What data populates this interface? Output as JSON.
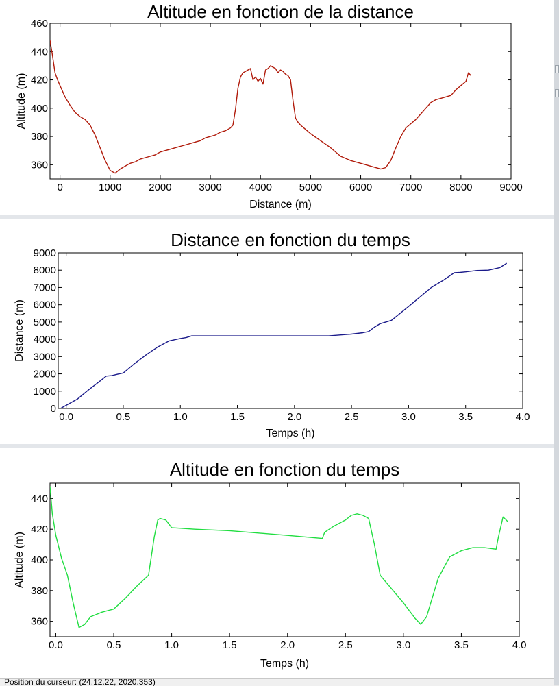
{
  "status_text": "Position du curseur: (24.12.22, 2020.353)",
  "chart_data": [
    {
      "type": "line",
      "title": "Altitude en fonction de la distance",
      "xlabel": "Distance (m)",
      "ylabel": "Altitude (m)",
      "xlim": [
        -200,
        9000
      ],
      "ylim": [
        350,
        460
      ],
      "xticks": [
        "0",
        "1000",
        "2000",
        "3000",
        "4000",
        "5000",
        "6000",
        "7000",
        "8000",
        "9000"
      ],
      "yticks": [
        "360",
        "380",
        "400",
        "420",
        "440",
        "460"
      ],
      "color": "#b01a0a",
      "series": [
        {
          "x": [
            -200,
            -150,
            -100,
            -50,
            0,
            100,
            200,
            300,
            400,
            500,
            600,
            700,
            800,
            900,
            1000,
            1100,
            1200,
            1300,
            1400,
            1500,
            1600,
            1700,
            1800,
            1900,
            2000,
            2100,
            2200,
            2300,
            2400,
            2500,
            2600,
            2700,
            2800,
            2900,
            3000,
            3100,
            3200,
            3300,
            3400,
            3450,
            3500,
            3550,
            3600,
            3650,
            3700,
            3750,
            3800,
            3850,
            3900,
            3950,
            4000,
            4050,
            4100,
            4150,
            4200,
            4250,
            4300,
            4350,
            4400,
            4450,
            4500,
            4550,
            4600,
            4650,
            4700,
            4750,
            4800,
            4900,
            5000,
            5200,
            5400,
            5600,
            5800,
            6000,
            6200,
            6400,
            6500,
            6600,
            6700,
            6800,
            6900,
            7000,
            7100,
            7200,
            7300,
            7400,
            7500,
            7600,
            7700,
            7800,
            7900,
            8000,
            8100,
            8150,
            8200
          ],
          "y": [
            448,
            437,
            425,
            420,
            416,
            408,
            402,
            397,
            394,
            392,
            388,
            381,
            372,
            363,
            356,
            354,
            357,
            359,
            361,
            362,
            364,
            365,
            366,
            367,
            369,
            370,
            371,
            372,
            373,
            374,
            375,
            376,
            377,
            379,
            380,
            381,
            383,
            384,
            386,
            388,
            399,
            414,
            422,
            425,
            426,
            427,
            428,
            420,
            422,
            419,
            421,
            417,
            427,
            428,
            430,
            429,
            428,
            425,
            427,
            426,
            424,
            423,
            420,
            405,
            393,
            390,
            388,
            385,
            382,
            377,
            372,
            366,
            363,
            361,
            359,
            357,
            358,
            363,
            372,
            380,
            386,
            389,
            392,
            396,
            400,
            404,
            406,
            407,
            408,
            409,
            413,
            416,
            419,
            425,
            423
          ]
        }
      ]
    },
    {
      "type": "line",
      "title": "Distance en fonction du temps",
      "xlabel": "Temps (h)",
      "ylabel": "Distance (m)",
      "xlim": [
        -0.07,
        4.0
      ],
      "ylim": [
        0,
        9000
      ],
      "xticks": [
        "0.0",
        "0.5",
        "1.0",
        "1.5",
        "2.0",
        "2.5",
        "3.0",
        "3.5",
        "4.0"
      ],
      "yticks": [
        "0",
        "1000",
        "2000",
        "3000",
        "4000",
        "5000",
        "6000",
        "7000",
        "8000",
        "9000"
      ],
      "color": "#1a1a8a",
      "series": [
        {
          "x": [
            -0.05,
            0.1,
            0.2,
            0.3,
            0.35,
            0.4,
            0.45,
            0.5,
            0.6,
            0.7,
            0.8,
            0.9,
            1.0,
            1.05,
            1.1,
            1.5,
            2.0,
            2.3,
            2.5,
            2.6,
            2.65,
            2.7,
            2.75,
            2.8,
            2.85,
            3.0,
            3.2,
            3.3,
            3.4,
            3.45,
            3.5,
            3.6,
            3.7,
            3.8,
            3.86
          ],
          "y": [
            0,
            550,
            1100,
            1600,
            1870,
            1900,
            1980,
            2050,
            2600,
            3100,
            3550,
            3900,
            4050,
            4100,
            4200,
            4200,
            4200,
            4200,
            4300,
            4380,
            4450,
            4700,
            4900,
            5000,
            5100,
            5900,
            7000,
            7400,
            7850,
            7870,
            7900,
            7980,
            8000,
            8150,
            8400
          ]
        }
      ]
    },
    {
      "type": "line",
      "title": "Altitude en fonction du temps",
      "xlabel": "Temps (h)",
      "ylabel": "Altitude (m)",
      "xlim": [
        -0.05,
        4.0
      ],
      "ylim": [
        350,
        450
      ],
      "xticks": [
        "0.0",
        "0.5",
        "1.0",
        "1.5",
        "2.0",
        "2.5",
        "3.0",
        "3.5",
        "4.0"
      ],
      "yticks": [
        "360",
        "380",
        "400",
        "420",
        "440"
      ],
      "color": "#20dd40",
      "series": [
        {
          "x": [
            -0.05,
            -0.03,
            0.0,
            0.05,
            0.1,
            0.15,
            0.2,
            0.25,
            0.3,
            0.4,
            0.5,
            0.6,
            0.7,
            0.8,
            0.85,
            0.88,
            0.9,
            0.95,
            1.0,
            1.2,
            1.5,
            2.0,
            2.3,
            2.32,
            2.4,
            2.5,
            2.55,
            2.6,
            2.65,
            2.7,
            2.75,
            2.8,
            2.9,
            3.0,
            3.1,
            3.15,
            3.2,
            3.3,
            3.4,
            3.5,
            3.6,
            3.7,
            3.8,
            3.82,
            3.86,
            3.9
          ],
          "y": [
            448,
            430,
            416,
            401,
            390,
            372,
            356,
            358,
            363,
            366,
            368,
            375,
            383,
            390,
            415,
            426,
            427,
            426,
            421,
            420,
            419,
            416,
            414,
            418,
            422,
            426,
            429,
            430,
            429,
            427,
            410,
            390,
            381,
            372,
            362,
            358,
            363,
            388,
            402,
            406,
            408,
            408,
            407,
            415,
            428,
            425
          ]
        }
      ]
    }
  ]
}
